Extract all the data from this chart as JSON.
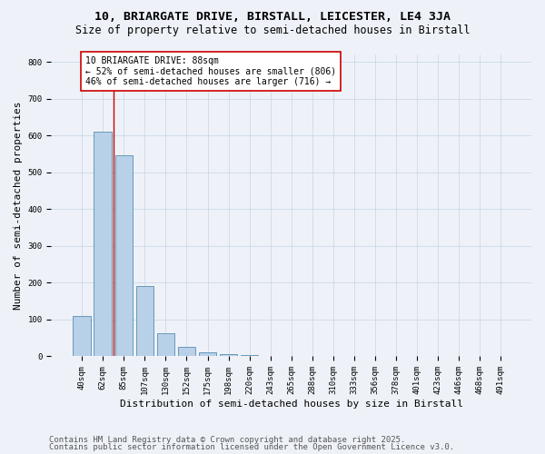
{
  "title": "10, BRIARGATE DRIVE, BIRSTALL, LEICESTER, LE4 3JA",
  "subtitle": "Size of property relative to semi-detached houses in Birstall",
  "xlabel": "Distribution of semi-detached houses by size in Birstall",
  "ylabel": "Number of semi-detached properties",
  "bins": [
    "40sqm",
    "62sqm",
    "85sqm",
    "107sqm",
    "130sqm",
    "152sqm",
    "175sqm",
    "198sqm",
    "220sqm",
    "243sqm",
    "265sqm",
    "288sqm",
    "310sqm",
    "333sqm",
    "356sqm",
    "378sqm",
    "401sqm",
    "423sqm",
    "446sqm",
    "468sqm",
    "491sqm"
  ],
  "values": [
    110,
    610,
    545,
    190,
    62,
    25,
    10,
    5,
    3,
    0,
    0,
    0,
    0,
    0,
    0,
    0,
    0,
    0,
    0,
    0,
    0
  ],
  "bar_color": "#b8d0e8",
  "bar_edge_color": "#6699bb",
  "vline_color": "#cc0000",
  "vline_x": 1.5,
  "ylim": [
    0,
    820
  ],
  "yticks": [
    0,
    100,
    200,
    300,
    400,
    500,
    600,
    700,
    800
  ],
  "annotation_title": "10 BRIARGATE DRIVE: 88sqm",
  "annotation_line1": "← 52% of semi-detached houses are smaller (806)",
  "annotation_line2": "46% of semi-detached houses are larger (716) →",
  "annotation_box_color": "#ffffff",
  "annotation_box_edge": "#cc0000",
  "footer1": "Contains HM Land Registry data © Crown copyright and database right 2025.",
  "footer2": "Contains public sector information licensed under the Open Government Licence v3.0.",
  "bg_color": "#eef2f8",
  "title_fontsize": 9.5,
  "subtitle_fontsize": 8.5,
  "axis_fontsize": 8,
  "tick_fontsize": 6.5,
  "annotation_fontsize": 7,
  "footer_fontsize": 6.5
}
